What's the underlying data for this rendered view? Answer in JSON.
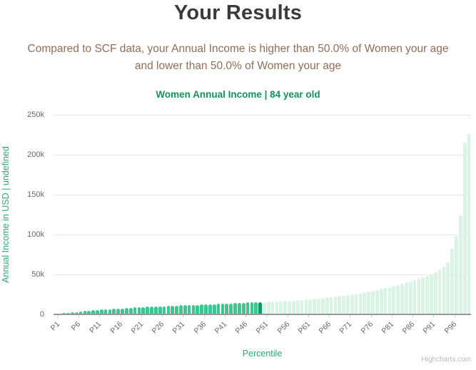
{
  "header": {
    "title": "Your Results",
    "subtitle_line1": "Compared to SCF data, your Annual Income is higher than 50.0% of Women your age",
    "subtitle_line2": "and lower than 50.0% of Women your age"
  },
  "credits": {
    "label": "Highcharts.com"
  },
  "chart_data": {
    "type": "bar",
    "title": "Women Annual Income | 84 year old",
    "xlabel": "Percentile",
    "ylabel": "Annual Income in USD | undefined",
    "n_bars": 100,
    "category_prefix": "P",
    "x_tick_labels": [
      "P1",
      "P6",
      "P11",
      "P16",
      "P21",
      "P26",
      "P31",
      "P36",
      "P41",
      "P46",
      "P51",
      "P56",
      "P61",
      "P66",
      "P71",
      "P76",
      "P81",
      "P86",
      "P91",
      "P96"
    ],
    "x_tick_step": 5,
    "y_ticks": [
      {
        "value": 0,
        "label": "0"
      },
      {
        "value": 50000,
        "label": "50k"
      },
      {
        "value": 100000,
        "label": "100k"
      },
      {
        "value": 150000,
        "label": "150k"
      },
      {
        "value": 200000,
        "label": "200k"
      },
      {
        "value": 250000,
        "label": "250k"
      }
    ],
    "ylim": [
      0,
      250000
    ],
    "grid": true,
    "legend": false,
    "highlight_percentile": 50,
    "values_usd": [
      500,
      1000,
      1500,
      2000,
      2500,
      3000,
      3800,
      4400,
      4800,
      5200,
      5600,
      6000,
      6300,
      6600,
      7000,
      7300,
      7600,
      7900,
      8200,
      8500,
      8800,
      9100,
      9400,
      9600,
      9800,
      10000,
      10200,
      10500,
      10700,
      11000,
      11200,
      11400,
      11600,
      11800,
      12000,
      12200,
      12400,
      12600,
      12800,
      13000,
      13200,
      13500,
      13700,
      14000,
      14200,
      14500,
      14800,
      15000,
      15200,
      15500,
      15600,
      15800,
      16000,
      16200,
      16500,
      16800,
      17000,
      17400,
      17800,
      18200,
      18600,
      19000,
      19500,
      20000,
      20500,
      21000,
      21600,
      22200,
      22800,
      23500,
      24200,
      25000,
      25800,
      26700,
      27600,
      28600,
      29600,
      30700,
      31800,
      33000,
      34200,
      35500,
      37000,
      38500,
      40000,
      41500,
      43000,
      44500,
      46000,
      48000,
      50000,
      53000,
      56000,
      60000,
      65000,
      82000,
      98000,
      124000,
      215000,
      226000
    ],
    "colors": {
      "bar_below": "#3cc78f",
      "bar_highlight": "#0b9c5f",
      "bar_above": "#d9f3e5",
      "gridline": "#e6e6e6",
      "axis_line": "#999999",
      "axis_title": "#2ca878",
      "chart_title": "#11935a",
      "tick_label": "#666666",
      "page_title": "#3b3b3b",
      "subtitle": "#8d6e59"
    }
  }
}
